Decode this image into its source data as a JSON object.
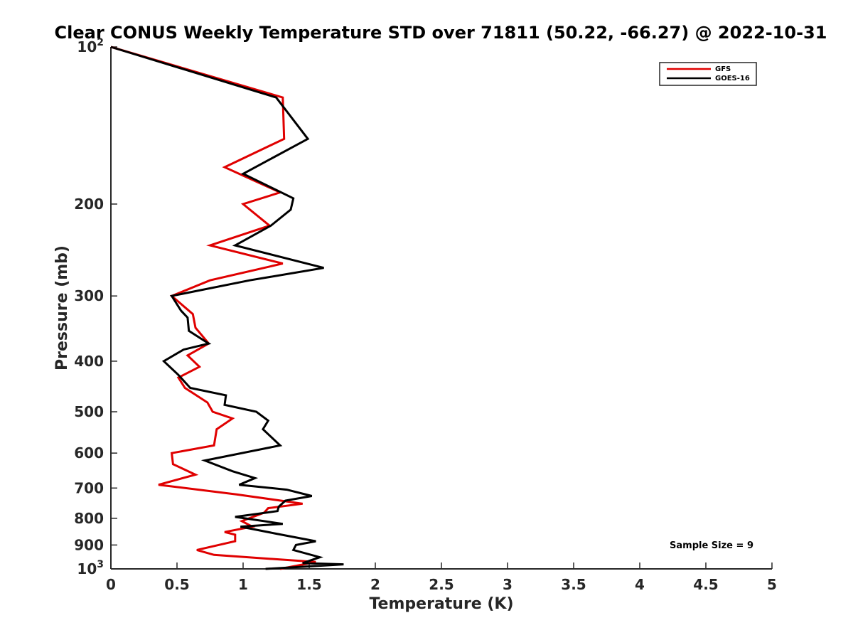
{
  "chart_data": {
    "type": "line",
    "title": "Clear CONUS Weekly Temperature STD over 71811 (50.22, -66.27) @ 2022-10-31",
    "xlabel": "Temperature (K)",
    "ylabel": "Pressure (mb)",
    "xlim": [
      0,
      5
    ],
    "ylim": [
      100,
      1000
    ],
    "y_scale": "log",
    "y_reversed": true,
    "grid": false,
    "legend_position": "top-right",
    "x_ticks": [
      0,
      0.5,
      1,
      1.5,
      2,
      2.5,
      3,
      3.5,
      4,
      4.5,
      5
    ],
    "x_tick_labels": [
      "0",
      "0.5",
      "1",
      "1.5",
      "2",
      "2.5",
      "3",
      "3.5",
      "4",
      "4.5",
      "5"
    ],
    "y_ticks": [
      100,
      200,
      300,
      400,
      500,
      600,
      700,
      800,
      900,
      1000
    ],
    "y_tick_labels": [
      {
        "base": "10",
        "sup": "2"
      },
      {
        "base": "200",
        "sup": ""
      },
      {
        "base": "300",
        "sup": ""
      },
      {
        "base": "400",
        "sup": ""
      },
      {
        "base": "500",
        "sup": ""
      },
      {
        "base": "600",
        "sup": ""
      },
      {
        "base": "700",
        "sup": ""
      },
      {
        "base": "800",
        "sup": ""
      },
      {
        "base": "900",
        "sup": ""
      },
      {
        "base": "10",
        "sup": "3"
      }
    ],
    "annotation": "Sample Size = 9",
    "series": [
      {
        "name": "GFS",
        "color": "#e00000",
        "points": [
          [
            0,
            100
          ],
          [
            1.3,
            125
          ],
          [
            1.31,
            150
          ],
          [
            0.86,
            170
          ],
          [
            1.28,
            190
          ],
          [
            1.0,
            200
          ],
          [
            1.2,
            220
          ],
          [
            0.75,
            240
          ],
          [
            1.3,
            260
          ],
          [
            0.75,
            280
          ],
          [
            0.46,
            300
          ],
          [
            0.62,
            325
          ],
          [
            0.64,
            345
          ],
          [
            0.74,
            370
          ],
          [
            0.58,
            390
          ],
          [
            0.67,
            410
          ],
          [
            0.51,
            430
          ],
          [
            0.56,
            450
          ],
          [
            0.73,
            480
          ],
          [
            0.77,
            500
          ],
          [
            0.92,
            515
          ],
          [
            0.8,
            540
          ],
          [
            0.78,
            580
          ],
          [
            0.46,
            600
          ],
          [
            0.47,
            630
          ],
          [
            0.64,
            660
          ],
          [
            0.36,
            690
          ],
          [
            0.95,
            720
          ],
          [
            1.45,
            750
          ],
          [
            1.19,
            765
          ],
          [
            1.16,
            780
          ],
          [
            0.99,
            810
          ],
          [
            1.07,
            830
          ],
          [
            0.86,
            850
          ],
          [
            0.94,
            860
          ],
          [
            0.94,
            885
          ],
          [
            0.65,
            920
          ],
          [
            0.78,
            940
          ],
          [
            1.55,
            970
          ],
          [
            1.28,
            1000
          ]
        ]
      },
      {
        "name": "GOES-16",
        "color": "#000000",
        "points": [
          [
            0,
            100
          ],
          [
            1.25,
            125
          ],
          [
            1.49,
            150
          ],
          [
            1.0,
            175
          ],
          [
            1.38,
            195
          ],
          [
            1.36,
            205
          ],
          [
            1.21,
            220
          ],
          [
            0.94,
            240
          ],
          [
            1.61,
            265
          ],
          [
            1.05,
            280
          ],
          [
            0.46,
            300
          ],
          [
            0.53,
            320
          ],
          [
            0.58,
            330
          ],
          [
            0.59,
            350
          ],
          [
            0.74,
            370
          ],
          [
            0.55,
            380
          ],
          [
            0.4,
            400
          ],
          [
            0.51,
            425
          ],
          [
            0.6,
            450
          ],
          [
            0.87,
            465
          ],
          [
            0.86,
            485
          ],
          [
            1.1,
            500
          ],
          [
            1.19,
            520
          ],
          [
            1.15,
            540
          ],
          [
            1.28,
            580
          ],
          [
            0.71,
            620
          ],
          [
            0.92,
            650
          ],
          [
            1.09,
            670
          ],
          [
            0.97,
            690
          ],
          [
            1.33,
            705
          ],
          [
            1.52,
            725
          ],
          [
            1.32,
            740
          ],
          [
            1.27,
            760
          ],
          [
            1.26,
            775
          ],
          [
            0.94,
            795
          ],
          [
            1.3,
            820
          ],
          [
            0.98,
            830
          ],
          [
            1.24,
            855
          ],
          [
            1.55,
            885
          ],
          [
            1.4,
            900
          ],
          [
            1.38,
            920
          ],
          [
            1.58,
            950
          ],
          [
            1.45,
            975
          ],
          [
            1.76,
            980
          ],
          [
            1.17,
            1000
          ]
        ]
      }
    ]
  }
}
